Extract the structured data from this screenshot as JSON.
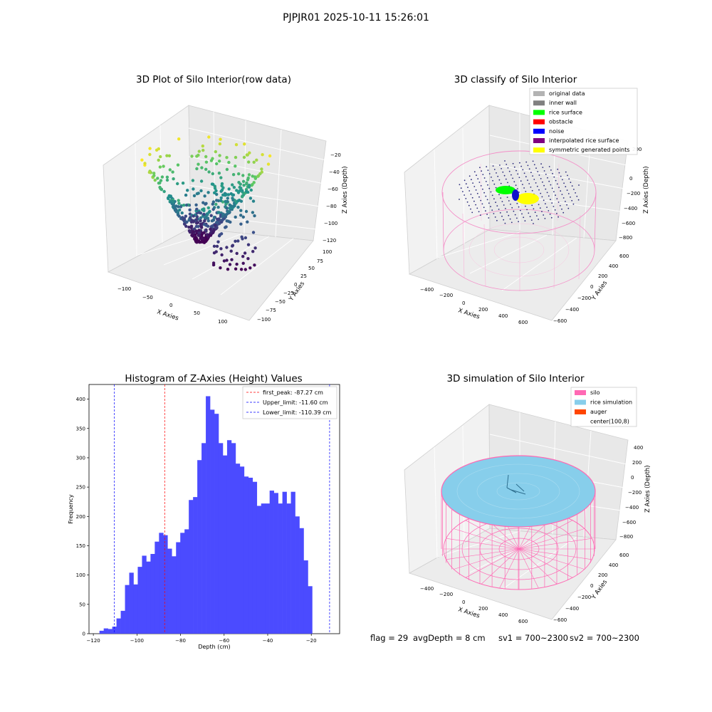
{
  "suptitle": "PJPJR01 2025-10-11 15:26:01",
  "plot1": {
    "title": "3D Plot of Silo Interior(row data)",
    "xlabel": "X Axies",
    "ylabel": "Y Axies",
    "zlabel": "Z Axies (Depth)",
    "xticks": [
      "−100",
      "−50",
      "0",
      "50",
      "100"
    ],
    "yticks": [
      "100",
      "75",
      "50",
      "25",
      "0",
      "−25",
      "−50",
      "−75",
      "−100"
    ],
    "zticks": [
      "−20",
      "−40",
      "−60",
      "−80",
      "−100",
      "−120"
    ]
  },
  "plot2": {
    "title": "3D classify of Silo Interior",
    "xlabel": "X Axies",
    "ylabel": "Y Axies",
    "zlabel": "Z Axies (Depth)",
    "xticks": [
      "−400",
      "−200",
      "0",
      "200",
      "400",
      "600"
    ],
    "yticks": [
      "600",
      "400",
      "200",
      "0",
      "−200",
      "−400",
      "−600"
    ],
    "zticks": [
      "200",
      "0",
      "−200",
      "−400",
      "−600",
      "−800"
    ],
    "legend": [
      {
        "label": "original data",
        "color": "#b3b3b3"
      },
      {
        "label": "inner wall",
        "color": "#808080"
      },
      {
        "label": "rice surface",
        "color": "#00ff00"
      },
      {
        "label": "obstacle",
        "color": "#ff0000"
      },
      {
        "label": "noise",
        "color": "#0000ff"
      },
      {
        "label": "interpolated rice surface",
        "color": "#800080"
      },
      {
        "label": "symmetric generated points",
        "color": "#ffff00"
      }
    ]
  },
  "plot4": {
    "title": "3D simulation of Silo Interior",
    "xlabel": "X Axies",
    "ylabel": "Y Axies",
    "zlabel": "Z Axies (Depth)",
    "xticks": [
      "−400",
      "−200",
      "0",
      "200",
      "400",
      "600"
    ],
    "yticks": [
      "600",
      "400",
      "200",
      "0",
      "−200",
      "−400",
      "−600"
    ],
    "zticks": [
      "400",
      "200",
      "0",
      "−200",
      "−400",
      "−600",
      "−800"
    ],
    "legend": [
      {
        "label": "silo",
        "color": "#ff69b4"
      },
      {
        "label": "rice simulation",
        "color": "#87ceeb"
      },
      {
        "label": "auger",
        "color": "#ff4500"
      },
      {
        "label": "center(100,8)",
        "color": ""
      }
    ]
  },
  "chart_data": {
    "type": "bar",
    "title": "Histogram of Z-Axies (Height) Values",
    "xlabel": "Depth (cm)",
    "ylabel": "Frequency",
    "xlim": [
      -122,
      -7
    ],
    "ylim": [
      0,
      425
    ],
    "xticks": [
      -120,
      -100,
      -80,
      -60,
      -40,
      -20
    ],
    "xtick_labels": [
      "−120",
      "−100",
      "−80",
      "−60",
      "−40",
      "−20"
    ],
    "yticks": [
      0,
      50,
      100,
      150,
      200,
      250,
      300,
      350,
      400
    ],
    "bin_start": -117.2,
    "bin_width": 1.952,
    "values": [
      5,
      9,
      8,
      12,
      26,
      39,
      83,
      104,
      84,
      114,
      133,
      123,
      136,
      157,
      172,
      168,
      145,
      132,
      156,
      172,
      178,
      228,
      233,
      296,
      325,
      405,
      382,
      375,
      325,
      304,
      330,
      325,
      290,
      285,
      268,
      266,
      259,
      218,
      222,
      222,
      244,
      240,
      222,
      242,
      222,
      242,
      200,
      180,
      125,
      81
    ],
    "color": "#4b4bff",
    "vlines": [
      {
        "x": -87.27,
        "color": "#ff0000",
        "label": "first_peak: -87.27 cm"
      },
      {
        "x": -11.6,
        "color": "#0000ff",
        "label": "Upper_limit: -11.60 cm"
      },
      {
        "x": -110.39,
        "color": "#0000ff",
        "label": "Lower_limit: -110.39 cm"
      }
    ],
    "legend_position": "top-right"
  },
  "footer": {
    "flag": "flag = 29",
    "avg": "avgDepth = 8 cm",
    "sv1": "sv1 = 700~2300",
    "sv2": "sv2 = 700~2300"
  }
}
